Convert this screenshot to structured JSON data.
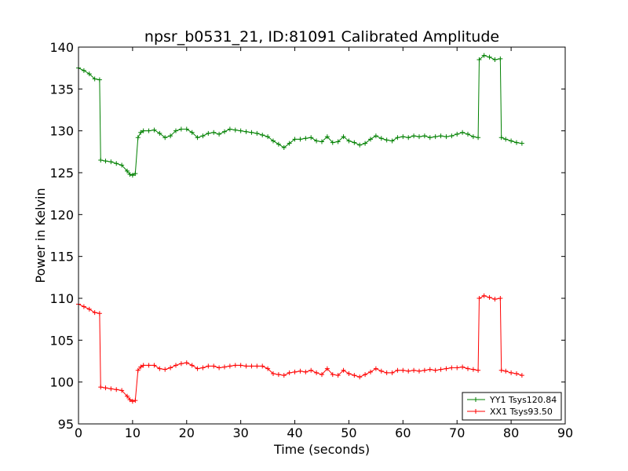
{
  "chart_data": {
    "type": "line",
    "title": "npsr_b0531_21, ID:81091 Calibrated Amplitude",
    "xlabel": "Time (seconds)",
    "ylabel": "Power in Kelvin",
    "xlim": [
      0,
      90
    ],
    "ylim": [
      95,
      140
    ],
    "xticks": [
      0,
      10,
      20,
      30,
      40,
      50,
      60,
      70,
      80,
      90
    ],
    "yticks": [
      95,
      100,
      105,
      110,
      115,
      120,
      125,
      130,
      135,
      140
    ],
    "grid": false,
    "legend_position": "lower-right",
    "marker": "plus",
    "series": [
      {
        "name": "YY1 Tsys120.84",
        "color": "#008000",
        "x": [
          0,
          1,
          2,
          3,
          3.9,
          4.1,
          5,
          6,
          7,
          8,
          9,
          9.5,
          10,
          10.5,
          11,
          11.5,
          12,
          13,
          14,
          15,
          16,
          17,
          18,
          19,
          20,
          21,
          22,
          23,
          24,
          25,
          26,
          27,
          28,
          29,
          30,
          31,
          32,
          33,
          34,
          35,
          36,
          37,
          38,
          39,
          40,
          41,
          42,
          43,
          44,
          45,
          46,
          47,
          48,
          49,
          50,
          51,
          52,
          53,
          54,
          55,
          56,
          57,
          58,
          59,
          60,
          61,
          62,
          63,
          64,
          65,
          66,
          67,
          68,
          69,
          70,
          71,
          72,
          73,
          73.9,
          74.1,
          75,
          76,
          77,
          78,
          78.2,
          79,
          80,
          81,
          82
        ],
        "y": [
          137.5,
          137.2,
          136.8,
          136.2,
          136.1,
          126.5,
          126.4,
          126.3,
          126.1,
          125.9,
          125.2,
          124.8,
          124.7,
          124.9,
          129.2,
          129.8,
          130.0,
          130.0,
          130.1,
          129.7,
          129.2,
          129.4,
          130.0,
          130.2,
          130.2,
          129.8,
          129.2,
          129.4,
          129.7,
          129.8,
          129.6,
          129.9,
          130.2,
          130.1,
          130.0,
          129.9,
          129.8,
          129.7,
          129.5,
          129.3,
          128.8,
          128.4,
          128.0,
          128.5,
          129.0,
          129.0,
          129.1,
          129.2,
          128.8,
          128.7,
          129.3,
          128.6,
          128.7,
          129.3,
          128.8,
          128.6,
          128.3,
          128.5,
          129.0,
          129.4,
          129.1,
          128.9,
          128.8,
          129.2,
          129.3,
          129.2,
          129.4,
          129.3,
          129.4,
          129.2,
          129.3,
          129.4,
          129.3,
          129.4,
          129.6,
          129.8,
          129.6,
          129.3,
          129.2,
          138.5,
          139.0,
          138.8,
          138.5,
          138.6,
          129.2,
          129.0,
          128.8,
          128.6,
          128.5
        ]
      },
      {
        "name": "XX1 Tsys93.50",
        "color": "#ff0000",
        "x": [
          0,
          1,
          2,
          3,
          3.9,
          4.1,
          5,
          6,
          7,
          8,
          9,
          9.5,
          10,
          10.5,
          11,
          11.5,
          12,
          13,
          14,
          15,
          16,
          17,
          18,
          19,
          20,
          21,
          22,
          23,
          24,
          25,
          26,
          27,
          28,
          29,
          30,
          31,
          32,
          33,
          34,
          35,
          36,
          37,
          38,
          39,
          40,
          41,
          42,
          43,
          44,
          45,
          46,
          47,
          48,
          49,
          50,
          51,
          52,
          53,
          54,
          55,
          56,
          57,
          58,
          59,
          60,
          61,
          62,
          63,
          64,
          65,
          66,
          67,
          68,
          69,
          70,
          71,
          72,
          73,
          73.9,
          74.1,
          75,
          76,
          77,
          78,
          78.2,
          79,
          80,
          81,
          82
        ],
        "y": [
          109.3,
          109.0,
          108.7,
          108.3,
          108.2,
          99.4,
          99.3,
          99.2,
          99.1,
          99.0,
          98.3,
          97.9,
          97.7,
          97.8,
          101.4,
          101.8,
          102.0,
          102.0,
          102.0,
          101.6,
          101.5,
          101.7,
          102.0,
          102.2,
          102.3,
          102.0,
          101.6,
          101.7,
          101.9,
          101.9,
          101.7,
          101.8,
          101.9,
          102.0,
          102.0,
          101.9,
          101.9,
          101.9,
          101.9,
          101.6,
          101.0,
          100.9,
          100.8,
          101.1,
          101.2,
          101.3,
          101.2,
          101.4,
          101.1,
          100.9,
          101.6,
          100.9,
          100.8,
          101.4,
          101.0,
          100.8,
          100.6,
          100.9,
          101.2,
          101.6,
          101.3,
          101.1,
          101.1,
          101.4,
          101.4,
          101.3,
          101.4,
          101.3,
          101.4,
          101.5,
          101.4,
          101.5,
          101.6,
          101.7,
          101.7,
          101.8,
          101.6,
          101.5,
          101.4,
          110.0,
          110.3,
          110.1,
          109.9,
          110.0,
          101.4,
          101.3,
          101.1,
          101.0,
          100.8
        ]
      }
    ]
  }
}
